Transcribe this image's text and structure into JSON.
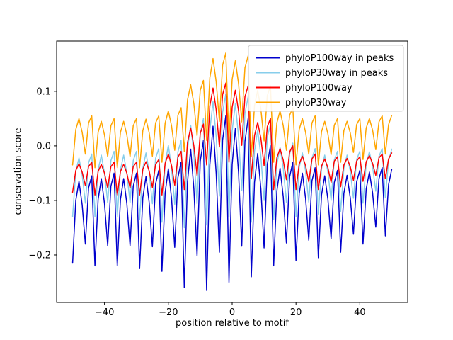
{
  "axes": {
    "xlabel": "position relative to motif",
    "ylabel": "conservation score",
    "xtick_values": [
      -40,
      -20,
      0,
      20,
      40
    ],
    "xtick_labels": [
      "−40",
      "−20",
      "0",
      "20",
      "40"
    ],
    "ytick_values": [
      -0.2,
      -0.1,
      0.0,
      0.1
    ],
    "ytick_labels": [
      "−0.2",
      "−0.1",
      "0.0",
      "0.1"
    ]
  },
  "colors": {
    "spine": "#000000",
    "text": "#000000",
    "legend_edge": "#cccccc",
    "background": "#ffffff"
  },
  "legend": {
    "position": "upper right",
    "entries": [
      "phyloP100way in peaks",
      "phyloP30way in peaks",
      "phyloP100way",
      "phyloP30way"
    ]
  },
  "chart_data": {
    "type": "line",
    "title": "",
    "xlabel": "position relative to motif",
    "ylabel": "conservation score",
    "xlim": [
      -55,
      55
    ],
    "ylim": [
      -0.287,
      0.192
    ],
    "grid": false,
    "legend_position": "upper right",
    "x": [
      -50,
      -49,
      -48,
      -47,
      -46,
      -45,
      -44,
      -43,
      -42,
      -41,
      -40,
      -39,
      -38,
      -37,
      -36,
      -35,
      -34,
      -33,
      -32,
      -31,
      -30,
      -29,
      -28,
      -27,
      -26,
      -25,
      -24,
      -23,
      -22,
      -21,
      -20,
      -19,
      -18,
      -17,
      -16,
      -15,
      -14,
      -13,
      -12,
      -11,
      -10,
      -9,
      -8,
      -7,
      -6,
      -5,
      -4,
      -3,
      -2,
      -1,
      0,
      1,
      2,
      3,
      4,
      5,
      6,
      7,
      8,
      9,
      10,
      11,
      12,
      13,
      14,
      15,
      16,
      17,
      18,
      19,
      20,
      21,
      22,
      23,
      24,
      25,
      26,
      27,
      28,
      29,
      30,
      31,
      32,
      33,
      34,
      35,
      36,
      37,
      38,
      39,
      40,
      41,
      42,
      43,
      44,
      45,
      46,
      47,
      48,
      49,
      50
    ],
    "series": [
      {
        "name": "phyloP100way in peaks",
        "color": "#0000cd",
        "values": [
          -0.215,
          -0.1,
          -0.065,
          -0.108,
          -0.18,
          -0.077,
          -0.055,
          -0.22,
          -0.098,
          -0.06,
          -0.106,
          -0.183,
          -0.074,
          -0.05,
          -0.22,
          -0.098,
          -0.06,
          -0.106,
          -0.183,
          -0.074,
          -0.05,
          -0.225,
          -0.095,
          -0.056,
          -0.104,
          -0.185,
          -0.07,
          -0.045,
          -0.23,
          -0.086,
          -0.042,
          -0.096,
          -0.186,
          -0.058,
          -0.03,
          -0.26,
          -0.066,
          -0.006,
          -0.079,
          -0.201,
          -0.028,
          0.01,
          -0.265,
          -0.035,
          0.036,
          -0.051,
          -0.195,
          0.01,
          0.055,
          -0.25,
          -0.034,
          0.032,
          -0.049,
          -0.184,
          0.008,
          0.05,
          -0.24,
          -0.067,
          -0.014,
          -0.079,
          -0.187,
          -0.034,
          0.0,
          -0.22,
          -0.083,
          -0.041,
          -0.093,
          -0.178,
          -0.057,
          -0.03,
          -0.21,
          -0.088,
          -0.05,
          -0.096,
          -0.173,
          -0.064,
          -0.04,
          -0.205,
          -0.09,
          -0.055,
          -0.098,
          -0.17,
          -0.067,
          -0.045,
          -0.195,
          -0.087,
          -0.054,
          -0.095,
          -0.162,
          -0.066,
          -0.045,
          -0.18,
          -0.079,
          -0.048,
          -0.086,
          -0.149,
          -0.06,
          -0.04,
          -0.165,
          -0.071,
          -0.043
        ]
      },
      {
        "name": "phyloP30way in peaks",
        "color": "#87ceeb",
        "values": [
          -0.13,
          -0.047,
          -0.022,
          -0.053,
          -0.105,
          -0.031,
          -0.015,
          -0.13,
          -0.044,
          -0.017,
          -0.05,
          -0.104,
          -0.027,
          -0.01,
          -0.13,
          -0.044,
          -0.017,
          -0.05,
          -0.104,
          -0.027,
          -0.01,
          -0.135,
          -0.041,
          -0.013,
          -0.048,
          -0.106,
          -0.023,
          -0.005,
          -0.14,
          -0.032,
          0.001,
          -0.04,
          -0.107,
          -0.011,
          0.01,
          -0.15,
          -0.006,
          0.038,
          -0.016,
          -0.106,
          0.022,
          0.05,
          -0.145,
          0.028,
          0.081,
          0.016,
          -0.092,
          0.061,
          0.095,
          -0.13,
          0.028,
          0.077,
          0.017,
          -0.082,
          0.059,
          0.09,
          -0.14,
          -0.01,
          0.029,
          -0.019,
          -0.1,
          0.015,
          0.04,
          -0.135,
          -0.034,
          -0.003,
          -0.041,
          -0.104,
          -0.015,
          0.005,
          -0.13,
          -0.04,
          -0.013,
          -0.046,
          -0.103,
          -0.023,
          -0.005,
          -0.125,
          -0.042,
          -0.017,
          -0.048,
          -0.1,
          -0.026,
          -0.01,
          -0.12,
          -0.041,
          -0.017,
          -0.046,
          -0.096,
          -0.025,
          -0.01,
          -0.105,
          -0.033,
          -0.011,
          -0.038,
          -0.083,
          -0.019,
          -0.005,
          -0.095,
          -0.027,
          -0.006
        ]
      },
      {
        "name": "phyloP100way",
        "color": "#ff0000",
        "values": [
          -0.085,
          -0.045,
          -0.033,
          -0.048,
          -0.073,
          -0.038,
          -0.03,
          -0.09,
          -0.047,
          -0.034,
          -0.05,
          -0.077,
          -0.038,
          -0.03,
          -0.09,
          -0.047,
          -0.034,
          -0.05,
          -0.077,
          -0.038,
          -0.03,
          -0.09,
          -0.043,
          -0.029,
          -0.046,
          -0.076,
          -0.034,
          -0.025,
          -0.09,
          -0.032,
          -0.015,
          -0.036,
          -0.072,
          -0.021,
          -0.01,
          -0.08,
          0.006,
          0.033,
          0.0,
          -0.054,
          0.023,
          0.04,
          -0.035,
          0.073,
          0.106,
          0.066,
          -0.002,
          0.094,
          0.115,
          -0.03,
          0.071,
          0.102,
          0.064,
          0.001,
          0.09,
          0.11,
          -0.06,
          0.019,
          0.043,
          0.014,
          -0.036,
          0.035,
          0.05,
          -0.08,
          -0.022,
          -0.005,
          -0.026,
          -0.062,
          -0.011,
          0.0,
          -0.08,
          -0.033,
          -0.019,
          -0.036,
          -0.066,
          -0.024,
          -0.015,
          -0.08,
          -0.037,
          -0.024,
          -0.04,
          -0.067,
          -0.028,
          -0.02,
          -0.075,
          -0.035,
          -0.023,
          -0.038,
          -0.063,
          -0.028,
          -0.02,
          -0.065,
          -0.029,
          -0.018,
          -0.032,
          -0.054,
          -0.022,
          -0.015,
          -0.06,
          -0.024,
          -0.013
        ]
      },
      {
        "name": "phyloP30way",
        "color": "#ffa500",
        "values": [
          -0.035,
          0.03,
          0.05,
          0.025,
          -0.015,
          0.042,
          0.055,
          -0.04,
          0.025,
          0.045,
          0.02,
          -0.02,
          0.037,
          0.05,
          -0.04,
          0.025,
          0.045,
          0.02,
          -0.02,
          0.037,
          0.05,
          -0.04,
          0.028,
          0.049,
          0.024,
          -0.019,
          0.042,
          0.055,
          -0.03,
          0.042,
          0.064,
          0.037,
          -0.008,
          0.056,
          0.07,
          -0.01,
          0.084,
          0.112,
          0.077,
          0.019,
          0.102,
          0.12,
          0.01,
          0.125,
          0.16,
          0.117,
          0.045,
          0.148,
          0.17,
          0.01,
          0.122,
          0.156,
          0.114,
          0.044,
          0.143,
          0.165,
          -0.02,
          0.074,
          0.102,
          0.067,
          0.009,
          0.092,
          0.11,
          -0.03,
          0.042,
          0.064,
          0.037,
          -0.008,
          0.056,
          0.07,
          -0.035,
          0.03,
          0.05,
          0.025,
          -0.015,
          0.042,
          0.055,
          -0.035,
          0.026,
          0.045,
          0.022,
          -0.016,
          0.038,
          0.05,
          -0.03,
          0.028,
          0.045,
          0.024,
          -0.012,
          0.039,
          0.05,
          -0.025,
          0.033,
          0.05,
          0.029,
          -0.007,
          0.044,
          0.055,
          -0.015,
          0.039,
          0.056
        ]
      }
    ]
  }
}
